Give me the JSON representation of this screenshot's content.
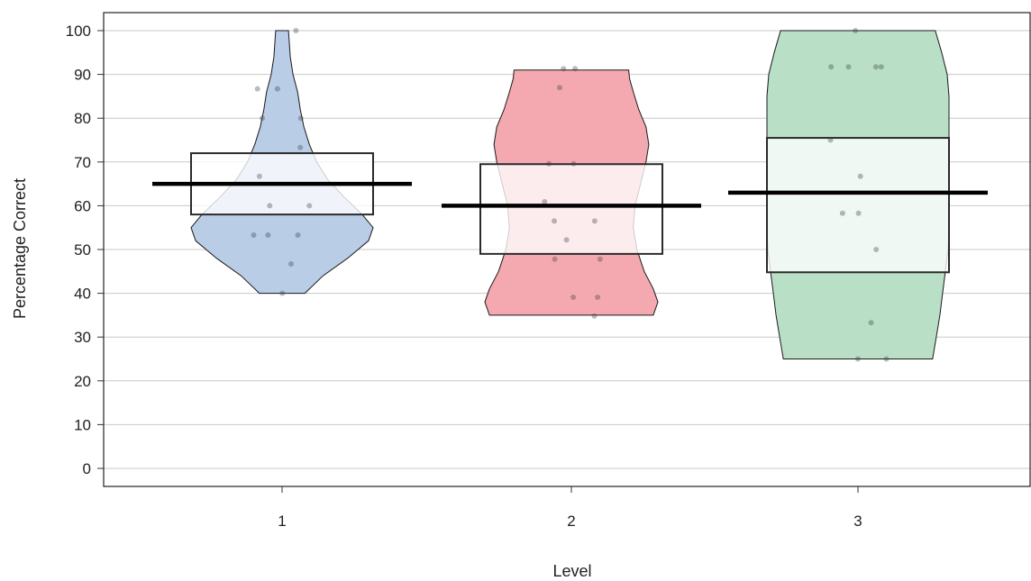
{
  "chart_data": {
    "type": "pirate",
    "title": "",
    "xlabel": "Level",
    "ylabel": "Percentage Correct",
    "ylim": [
      0,
      100
    ],
    "yticks": [
      0,
      10,
      20,
      30,
      40,
      50,
      60,
      70,
      80,
      90,
      100
    ],
    "categories": [
      "1",
      "2",
      "3"
    ],
    "grid": true,
    "series": [
      {
        "category": "1",
        "color": "#b9cde6",
        "mean": 65,
        "inference_band": [
          58,
          72
        ],
        "range": [
          40,
          100
        ],
        "density": [
          [
            40,
            0.25
          ],
          [
            44,
            0.45
          ],
          [
            48,
            0.72
          ],
          [
            52,
            0.95
          ],
          [
            55,
            1.0
          ],
          [
            58,
            0.88
          ],
          [
            62,
            0.68
          ],
          [
            66,
            0.5
          ],
          [
            70,
            0.38
          ],
          [
            74,
            0.3
          ],
          [
            78,
            0.24
          ],
          [
            82,
            0.2
          ],
          [
            86,
            0.17
          ],
          [
            90,
            0.12
          ],
          [
            94,
            0.09
          ],
          [
            97,
            0.08
          ],
          [
            100,
            0.07
          ]
        ],
        "points": [
          100,
          86.7,
          86.7,
          80,
          80,
          73.3,
          66.7,
          60,
          60,
          53.3,
          53.3,
          53.3,
          46.7,
          40
        ]
      },
      {
        "category": "2",
        "color": "#f4a9b1",
        "mean": 60,
        "inference_band": [
          49,
          69.5
        ],
        "range": [
          35,
          91
        ],
        "density": [
          [
            35,
            0.9
          ],
          [
            38,
            0.95
          ],
          [
            41,
            0.9
          ],
          [
            45,
            0.8
          ],
          [
            50,
            0.72
          ],
          [
            55,
            0.68
          ],
          [
            60,
            0.7
          ],
          [
            65,
            0.76
          ],
          [
            70,
            0.82
          ],
          [
            74,
            0.85
          ],
          [
            78,
            0.82
          ],
          [
            82,
            0.74
          ],
          [
            86,
            0.68
          ],
          [
            89,
            0.64
          ],
          [
            91,
            0.63
          ]
        ],
        "points": [
          91.3,
          91.3,
          87,
          69.6,
          69.6,
          60.9,
          56.5,
          56.5,
          52.2,
          47.8,
          47.8,
          39.1,
          39.1,
          34.8
        ]
      },
      {
        "category": "3",
        "color": "#b9e0c6",
        "mean": 63,
        "inference_band": [
          44.8,
          75.5
        ],
        "range": [
          25,
          100
        ],
        "density": [
          [
            25,
            0.82
          ],
          [
            30,
            0.86
          ],
          [
            35,
            0.9
          ],
          [
            40,
            0.93
          ],
          [
            45,
            0.96
          ],
          [
            50,
            0.99
          ],
          [
            55,
            1.0
          ],
          [
            60,
            1.0
          ],
          [
            65,
            1.0
          ],
          [
            70,
            1.0
          ],
          [
            75,
            1.0
          ],
          [
            80,
            1.0
          ],
          [
            85,
            1.0
          ],
          [
            90,
            0.98
          ],
          [
            95,
            0.92
          ],
          [
            100,
            0.85
          ]
        ],
        "points": [
          100,
          91.7,
          91.7,
          91.7,
          91.7,
          75,
          66.7,
          58.3,
          58.3,
          50,
          33.3,
          25,
          25
        ]
      }
    ]
  }
}
